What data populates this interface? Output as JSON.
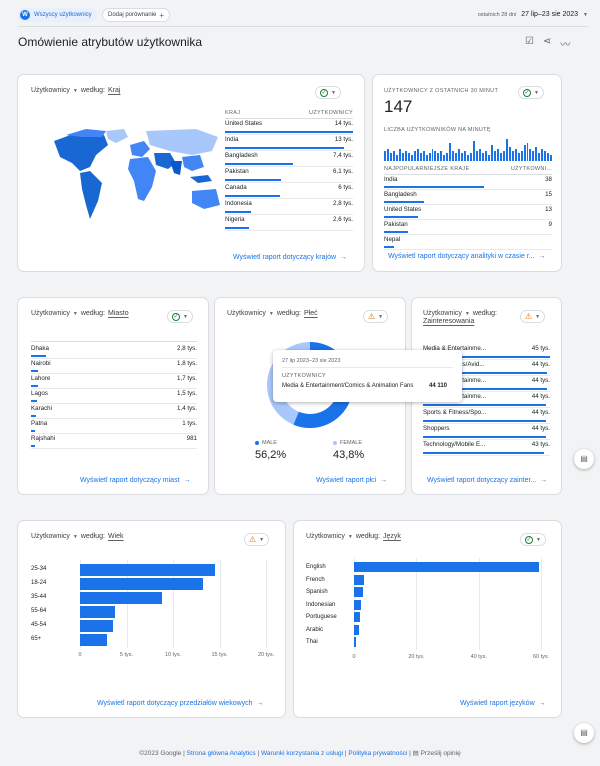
{
  "topbar": {
    "avatar": "W",
    "segment": "Wszyscy użytkownicy",
    "add_compare": "Dodaj porównanie",
    "date_prefix": "ostatnich 28 dni",
    "date_range": "27 lip–23 sie 2023"
  },
  "page": {
    "title": "Omówienie atrybutów użytkownika"
  },
  "country": {
    "metric": "Użytkownicy",
    "by": "według:",
    "dim": "Kraj",
    "col1": "KRAJ",
    "col2": "UŻYTKOWNICY",
    "rows": [
      {
        "name": "United States",
        "value": "14 tys.",
        "frac": 1
      },
      {
        "name": "India",
        "value": "13 tys.",
        "frac": 0.93
      },
      {
        "name": "Bangladesh",
        "value": "7,4 tys.",
        "frac": 0.53
      },
      {
        "name": "Pakistan",
        "value": "6,1 tys.",
        "frac": 0.44
      },
      {
        "name": "Canada",
        "value": "6 tys.",
        "frac": 0.43
      },
      {
        "name": "Indonesia",
        "value": "2,8 tys.",
        "frac": 0.2
      },
      {
        "name": "Nigeria",
        "value": "2,6 tys.",
        "frac": 0.19
      }
    ],
    "link": "Wyświetl raport dotyczący krajów"
  },
  "realtime": {
    "label": "UŻYTKOWNICY Z OSTATNICH 30 MINUT",
    "count": "147",
    "per_min": "LICZBA UŻYTKOWNIKÓW NA MINUTĘ",
    "col1": "NAJPOPULARNIEJSZE KRAJE",
    "col2": "UŻYTKOWNI...",
    "bars": [
      5,
      6,
      4,
      5,
      3,
      6,
      4,
      5,
      4,
      3,
      5,
      6,
      4,
      5,
      3,
      4,
      6,
      5,
      4,
      5,
      3,
      4,
      9,
      5,
      4,
      6,
      4,
      5,
      3,
      4,
      10,
      5,
      6,
      4,
      5,
      3,
      8,
      5,
      6,
      4,
      5,
      11,
      7,
      5,
      6,
      4,
      5,
      8,
      9,
      6,
      5,
      7,
      4,
      6,
      5,
      4,
      3
    ],
    "rows": [
      {
        "name": "India",
        "value": "38",
        "frac": 1
      },
      {
        "name": "Bangladesh",
        "value": "15",
        "frac": 0.4
      },
      {
        "name": "United States",
        "value": "13",
        "frac": 0.34
      },
      {
        "name": "Pakistan",
        "value": "9",
        "frac": 0.24
      },
      {
        "name": "Nepal",
        "value": "",
        "frac": 0.1
      }
    ],
    "link": "Wyświetl raport dotyczący analityki w czasie r..."
  },
  "city": {
    "metric": "Użytkownicy",
    "by": "według:",
    "dim": "Miasto",
    "rows": [
      {
        "name": "Dhaka",
        "value": "2,8 tys.",
        "frac": 0.25
      },
      {
        "name": "Nairobi",
        "value": "1,8 tys.",
        "frac": 0.12
      },
      {
        "name": "Lahore",
        "value": "1,7 tys.",
        "frac": 0.11
      },
      {
        "name": "Lagos",
        "value": "1,5 tys.",
        "frac": 0.1
      },
      {
        "name": "Karachi",
        "value": "1,4 tys.",
        "frac": 0.09
      },
      {
        "name": "Patna",
        "value": "1 tys.",
        "frac": 0.07
      },
      {
        "name": "Rajshahi",
        "value": "981",
        "frac": 0.06
      }
    ],
    "link": "Wyświetl raport dotyczący miast"
  },
  "gender": {
    "metric": "Użytkownicy",
    "by": "według:",
    "dim": "Płeć",
    "male_label": "MALE",
    "male_value": "56,2%",
    "female_label": "FEMALE",
    "female_value": "43,8%",
    "male_frac": 0.562,
    "link": "Wyświetl raport płci"
  },
  "tooltip": {
    "date": "27 lip 2023–23 sie 2023",
    "metric": "UŻYTKOWNICY",
    "category": "Media & Entertainment/Comics & Animation Fans",
    "value": "44 110"
  },
  "interests": {
    "metric": "Użytkownicy",
    "by": "według:",
    "dim": "Zainteresowania",
    "rows": [
      {
        "name": "Media & Entertainme...",
        "value": "45 tys.",
        "frac": 1
      },
      {
        "name": "News & Politics/Avid...",
        "value": "44 tys.",
        "frac": 0.98
      },
      {
        "name": "Media & Entertainme...",
        "value": "44 tys.",
        "frac": 0.98
      },
      {
        "name": "Media & Entertainme...",
        "value": "44 tys.",
        "frac": 0.97
      },
      {
        "name": "Sports & Fitness/Spo...",
        "value": "44 tys.",
        "frac": 0.97
      },
      {
        "name": "Shoppers",
        "value": "44 tys.",
        "frac": 0.97
      },
      {
        "name": "Technology/Mobile E...",
        "value": "43 tys.",
        "frac": 0.95
      }
    ],
    "link": "Wyświetl raport dotyczący zainter..."
  },
  "age": {
    "metric": "Użytkownicy",
    "by": "według:",
    "dim": "Wiek",
    "link": "Wyświetl raport dotyczący przedziałów wiekowych",
    "chart_data": {
      "type": "bar",
      "orientation": "horizontal",
      "categories": [
        "25-34",
        "18-24",
        "35-44",
        "55-64",
        "45-54",
        "65+"
      ],
      "values": [
        14500,
        13200,
        8800,
        3800,
        3600,
        2900
      ],
      "xlim": [
        0,
        20000
      ],
      "ticks": [
        "0",
        "5 tys.",
        "10 tys.",
        "15 tys.",
        "20 tys."
      ]
    }
  },
  "language": {
    "metric": "Użytkownicy",
    "by": "według:",
    "dim": "Język",
    "link": "Wyświetl raport języków",
    "chart_data": {
      "type": "bar",
      "orientation": "horizontal",
      "categories": [
        "English",
        "French",
        "Spanish",
        "Indonesian",
        "Portuguese",
        "Arabic",
        "Thai"
      ],
      "values": [
        59500,
        3200,
        2800,
        2100,
        1900,
        1700,
        700
      ],
      "xlim": [
        0,
        60000
      ],
      "ticks": [
        "0",
        "20 tys.",
        "40 tys.",
        "60 tys."
      ]
    }
  },
  "footer": {
    "copyright": "©2023 Google",
    "home": "Strona główna Analytics",
    "terms": "Warunki korzystania z usługi",
    "privacy": "Polityka prywatności",
    "feedback": "Prześlij opinię"
  }
}
